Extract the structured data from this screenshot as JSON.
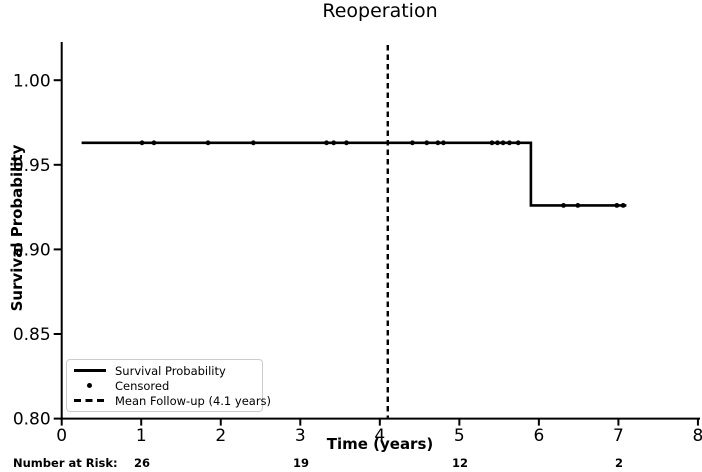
{
  "title": "Reoperation",
  "axes": {
    "xlabel": "Time (years)",
    "ylabel": "Survival Probability",
    "xtick_labels": [
      "0",
      "1",
      "2",
      "3",
      "4",
      "5",
      "6",
      "7",
      "8"
    ],
    "ytick_labels": [
      "0.80",
      "0.85",
      "0.90",
      "0.95",
      "1.00"
    ]
  },
  "chart_data": {
    "type": "line",
    "subtype": "kaplan-meier-step",
    "title": "Reoperation",
    "xlabel": "Time (years)",
    "ylabel": "Survival Probability",
    "xlim": [
      0,
      8
    ],
    "ylim": [
      0.8,
      1.022
    ],
    "xticks": [
      0,
      1,
      2,
      3,
      4,
      5,
      6,
      7,
      8
    ],
    "yticks": [
      0.8,
      0.85,
      0.9,
      0.95,
      1.0
    ],
    "grid": false,
    "legend_position": "lower-left",
    "step_curve": [
      [
        0.25,
        0.963
      ],
      [
        5.9,
        0.963
      ],
      [
        5.9,
        0.926
      ],
      [
        7.1,
        0.926
      ]
    ],
    "censored_points": [
      [
        1.01,
        0.963
      ],
      [
        1.16,
        0.963
      ],
      [
        1.84,
        0.963
      ],
      [
        2.41,
        0.963
      ],
      [
        3.33,
        0.963
      ],
      [
        3.42,
        0.963
      ],
      [
        3.58,
        0.963
      ],
      [
        4.41,
        0.963
      ],
      [
        4.59,
        0.963
      ],
      [
        4.73,
        0.963
      ],
      [
        4.8,
        0.963
      ],
      [
        5.41,
        0.963
      ],
      [
        5.48,
        0.963
      ],
      [
        5.55,
        0.963
      ],
      [
        5.63,
        0.963
      ],
      [
        5.74,
        0.963
      ],
      [
        6.31,
        0.926
      ],
      [
        6.49,
        0.926
      ],
      [
        6.98,
        0.926
      ],
      [
        7.06,
        0.926
      ]
    ],
    "mean_followup_x": 4.1
  },
  "legend": {
    "items": [
      {
        "label": "Survival Probability",
        "marker": "solid-line"
      },
      {
        "label": "Censored",
        "marker": "dot"
      },
      {
        "label": "Mean Follow-up (4.1 years)",
        "marker": "dashed-line"
      }
    ]
  },
  "risk_row": {
    "label": "Number at Risk:",
    "values": [
      {
        "time": 1,
        "n": "26"
      },
      {
        "time": 3,
        "n": "19"
      },
      {
        "time": 5,
        "n": "12"
      },
      {
        "time": 7,
        "n": "2"
      }
    ]
  },
  "colors": {
    "line": "#000000",
    "text": "#000000",
    "legend_border": "#cccccc",
    "background": "#ffffff"
  }
}
